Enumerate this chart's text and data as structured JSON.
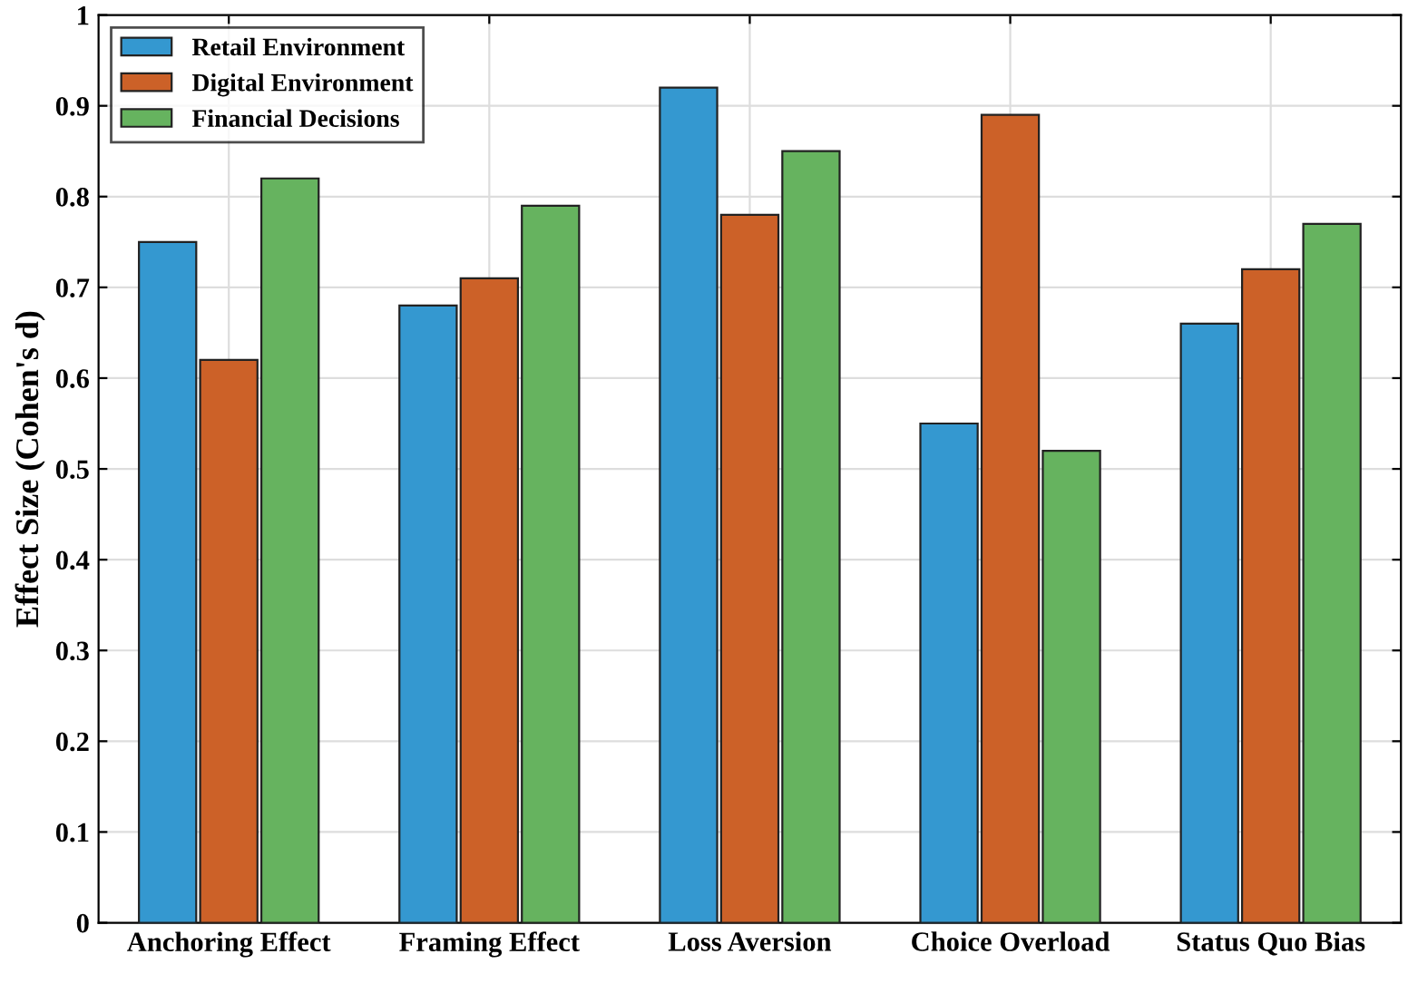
{
  "chart_data": {
    "type": "bar",
    "ylabel": "Effect Size (Cohen's d)",
    "categories": [
      "Anchoring Effect",
      "Framing Effect",
      "Loss Aversion",
      "Choice Overload",
      "Status Quo Bias"
    ],
    "series": [
      {
        "name": "Retail Environment",
        "color": "#3498d0",
        "values": [
          0.75,
          0.68,
          0.92,
          0.55,
          0.66
        ]
      },
      {
        "name": "Digital Environment",
        "color": "#cc6128",
        "values": [
          0.62,
          0.71,
          0.78,
          0.89,
          0.72
        ]
      },
      {
        "name": "Financial Decisions",
        "color": "#66b35f",
        "values": [
          0.82,
          0.79,
          0.85,
          0.52,
          0.77
        ]
      }
    ],
    "ylim": [
      0,
      1
    ],
    "yticks": [
      0,
      0.1,
      0.2,
      0.3,
      0.4,
      0.5,
      0.6,
      0.7,
      0.8,
      0.9,
      1
    ],
    "grid": true,
    "legend": "top left"
  }
}
